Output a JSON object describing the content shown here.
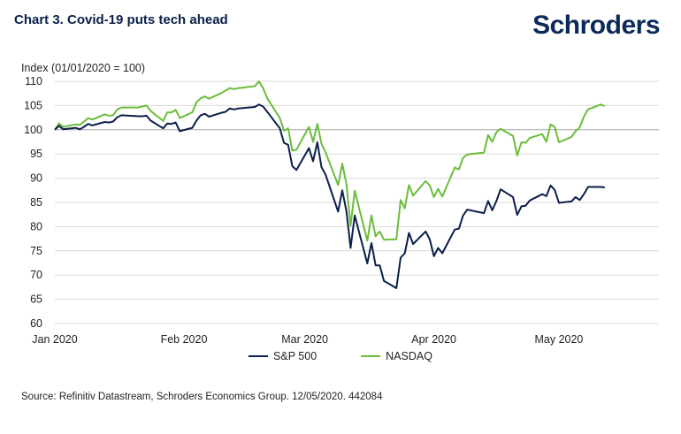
{
  "header": {
    "title": "Chart 3. Covid-19 puts tech ahead",
    "brand": "Schroders"
  },
  "footer": {
    "source": "Source: Refinitiv Datastream, Schroders Economics Group. 12/05/2020. 442084"
  },
  "colors": {
    "sp500": "#0b1f4b",
    "nasdaq": "#6bbd3a",
    "grid": "#d9d9d9",
    "baseline": "#a6a6a6"
  },
  "chart_data": {
    "type": "line",
    "title": "Chart 3. Covid-19 puts tech ahead",
    "ylabel": "Index (01/01/2020 = 100)",
    "xlabel": "",
    "ylim": [
      60,
      110
    ],
    "yticks": [
      60,
      65,
      70,
      75,
      80,
      85,
      90,
      95,
      100,
      105,
      110
    ],
    "ytick_labels": [
      "60",
      "65",
      "70",
      "75",
      "80",
      "85",
      "90",
      "95",
      "100",
      "105",
      "110"
    ],
    "xlim": [
      "2020-01-01",
      "2020-05-25"
    ],
    "xtick_dates": [
      "2020-01-01",
      "2020-02-01",
      "2020-03-01",
      "2020-04-01",
      "2020-05-01"
    ],
    "xtick_labels": [
      "Jan 2020",
      "Feb 2020",
      "Mar 2020",
      "Apr 2020",
      "May 2020"
    ],
    "reference_line": 100,
    "grid": "horizontal",
    "legend_position": "bottom",
    "x": [
      "2020-01-01",
      "2020-01-02",
      "2020-01-03",
      "2020-01-06",
      "2020-01-07",
      "2020-01-08",
      "2020-01-09",
      "2020-01-10",
      "2020-01-13",
      "2020-01-14",
      "2020-01-15",
      "2020-01-16",
      "2020-01-17",
      "2020-01-21",
      "2020-01-22",
      "2020-01-23",
      "2020-01-24",
      "2020-01-27",
      "2020-01-28",
      "2020-01-29",
      "2020-01-30",
      "2020-01-31",
      "2020-02-03",
      "2020-02-04",
      "2020-02-05",
      "2020-02-06",
      "2020-02-07",
      "2020-02-10",
      "2020-02-11",
      "2020-02-12",
      "2020-02-13",
      "2020-02-14",
      "2020-02-18",
      "2020-02-19",
      "2020-02-20",
      "2020-02-21",
      "2020-02-24",
      "2020-02-25",
      "2020-02-26",
      "2020-02-27",
      "2020-02-28",
      "2020-03-02",
      "2020-03-03",
      "2020-03-04",
      "2020-03-05",
      "2020-03-06",
      "2020-03-09",
      "2020-03-10",
      "2020-03-11",
      "2020-03-12",
      "2020-03-13",
      "2020-03-16",
      "2020-03-17",
      "2020-03-18",
      "2020-03-19",
      "2020-03-20",
      "2020-03-23",
      "2020-03-24",
      "2020-03-25",
      "2020-03-26",
      "2020-03-27",
      "2020-03-30",
      "2020-03-31",
      "2020-04-01",
      "2020-04-02",
      "2020-04-03",
      "2020-04-06",
      "2020-04-07",
      "2020-04-08",
      "2020-04-09",
      "2020-04-13",
      "2020-04-14",
      "2020-04-15",
      "2020-04-16",
      "2020-04-17",
      "2020-04-20",
      "2020-04-21",
      "2020-04-22",
      "2020-04-23",
      "2020-04-24",
      "2020-04-27",
      "2020-04-28",
      "2020-04-29",
      "2020-04-30",
      "2020-05-01",
      "2020-05-04",
      "2020-05-05",
      "2020-05-06",
      "2020-05-07",
      "2020-05-08",
      "2020-05-11",
      "2020-05-12"
    ],
    "series": [
      {
        "name": "S&P 500",
        "values": [
          100.0,
          100.8,
          100.1,
          100.4,
          100.1,
          100.6,
          101.2,
          100.9,
          101.6,
          101.5,
          101.7,
          102.6,
          103.0,
          102.8,
          102.8,
          102.9,
          101.9,
          100.3,
          101.3,
          101.2,
          101.5,
          99.7,
          100.4,
          101.9,
          103.0,
          103.3,
          102.7,
          103.5,
          103.7,
          104.4,
          104.2,
          104.4,
          104.7,
          105.2,
          104.8,
          103.7,
          100.3,
          97.3,
          96.9,
          92.5,
          91.7,
          96.2,
          93.5,
          97.4,
          92.3,
          90.7,
          83.1,
          87.5,
          83.2,
          75.6,
          82.3,
          72.4,
          76.6,
          72.0,
          72.0,
          68.8,
          67.3,
          73.6,
          74.5,
          78.7,
          76.4,
          79.0,
          77.4,
          73.9,
          75.6,
          74.5,
          79.4,
          79.6,
          82.3,
          83.5,
          82.8,
          85.3,
          83.4,
          85.3,
          87.7,
          86.1,
          82.4,
          84.2,
          84.3,
          85.4,
          86.7,
          86.3,
          88.5,
          87.6,
          84.9,
          85.2,
          86.1,
          85.5,
          86.7,
          88.2,
          88.2,
          88.1
        ]
      },
      {
        "name": "NASDAQ",
        "values": [
          100.0,
          101.3,
          100.6,
          101.1,
          101.0,
          101.7,
          102.4,
          102.1,
          103.2,
          102.9,
          103.0,
          104.2,
          104.6,
          104.6,
          104.8,
          105.0,
          103.9,
          101.8,
          103.6,
          103.6,
          104.1,
          102.4,
          103.6,
          105.7,
          106.5,
          106.9,
          106.4,
          107.6,
          108.1,
          108.6,
          108.4,
          108.6,
          109.0,
          110.0,
          108.6,
          106.5,
          102.4,
          99.8,
          100.3,
          95.7,
          95.9,
          100.6,
          97.5,
          101.2,
          97.1,
          95.3,
          88.6,
          93.0,
          88.8,
          80.2,
          87.4,
          77.1,
          82.3,
          78.0,
          79.0,
          77.3,
          77.4,
          85.5,
          83.8,
          88.6,
          86.4,
          89.4,
          88.5,
          86.1,
          87.8,
          86.2,
          92.2,
          91.8,
          94.2,
          94.9,
          95.3,
          98.9,
          97.5,
          99.5,
          100.2,
          98.7,
          94.7,
          97.4,
          97.3,
          98.3,
          99.1,
          97.5,
          101.1,
          100.6,
          97.4,
          98.5,
          99.7,
          100.5,
          102.7,
          104.2,
          105.2,
          104.9
        ]
      }
    ]
  }
}
